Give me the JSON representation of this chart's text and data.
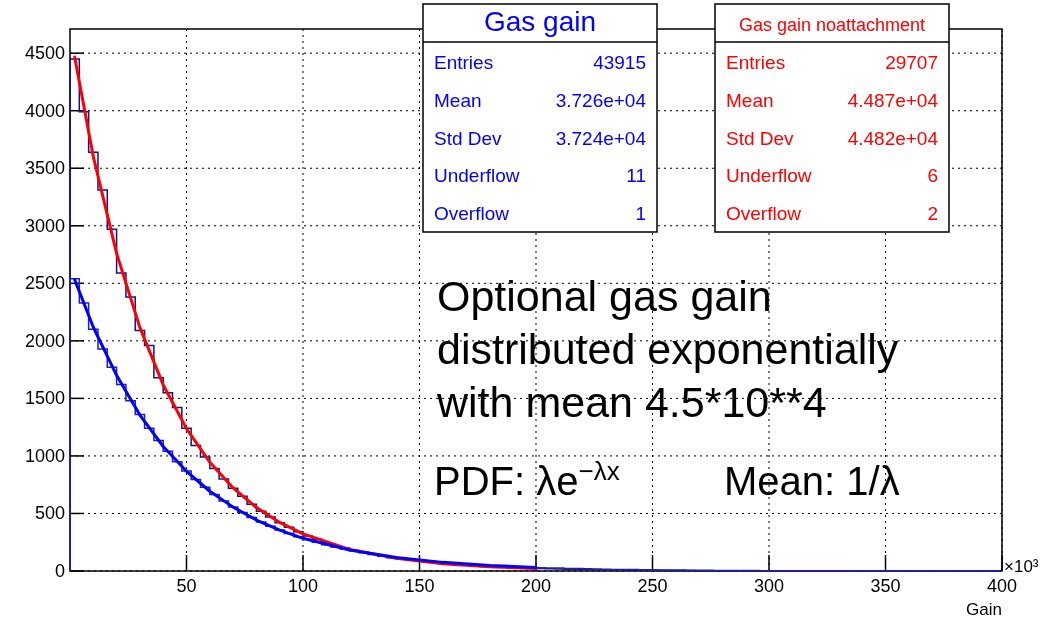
{
  "chart_data": {
    "type": "histogram",
    "xlabel": "Gain",
    "bins": [
      0,
      4,
      8,
      12,
      16,
      20,
      24,
      28,
      32,
      36,
      40,
      44,
      48,
      52,
      56,
      60,
      64,
      68,
      72,
      76,
      80,
      84,
      88,
      92,
      96,
      100,
      104,
      108,
      112,
      116,
      120,
      124,
      128,
      132,
      136,
      140,
      144,
      148,
      152,
      156,
      160,
      164,
      168,
      172,
      176,
      180,
      184,
      188,
      192,
      196,
      200,
      204,
      208,
      212,
      216,
      220,
      224,
      228,
      232,
      236,
      240,
      244,
      248,
      252,
      256,
      260,
      264,
      268,
      272,
      276,
      280,
      284,
      288,
      292,
      296,
      300,
      304,
      308,
      312,
      316,
      320,
      324,
      328,
      332,
      336,
      340,
      344,
      348,
      352,
      356,
      360,
      364,
      368,
      372,
      376,
      380,
      384,
      388,
      392,
      396,
      400
    ],
    "series": [
      {
        "type": "histogram",
        "color": "#10109a",
        "values": [
          4450,
          3990,
          3640,
          3310,
          2970,
          2590,
          2380,
          2090,
          1960,
          1680,
          1550,
          1420,
          1240,
          1090,
          990,
          890,
          800,
          720,
          650,
          580,
          520,
          470,
          420,
          380,
          340,
          305,
          275,
          245,
          220,
          200,
          178,
          160,
          144,
          129,
          116,
          104,
          93,
          84,
          75,
          68,
          61,
          55,
          49,
          44,
          40,
          36,
          32,
          29,
          26,
          23,
          21,
          19,
          17,
          15,
          13,
          12,
          11,
          10,
          9,
          8,
          7,
          6,
          6,
          5,
          5,
          4,
          4,
          3,
          3,
          3,
          2,
          2,
          2,
          2,
          2,
          1,
          1,
          1,
          1,
          1,
          0,
          0,
          0,
          0,
          0,
          0,
          0,
          0,
          0,
          0,
          0,
          0,
          0,
          0,
          0,
          0,
          0,
          0,
          0,
          0
        ]
      },
      {
        "type": "histogram",
        "color": "#2020b0",
        "values": [
          2540,
          2330,
          2100,
          1930,
          1770,
          1620,
          1480,
          1360,
          1240,
          1135,
          1040,
          950,
          870,
          795,
          727,
          665,
          608,
          556,
          509,
          465,
          426,
          389,
          356,
          326,
          298,
          273,
          249,
          228,
          209,
          191,
          175,
          160,
          146,
          134,
          122,
          112,
          102,
          94,
          86,
          78,
          72,
          66,
          60,
          55,
          50,
          46,
          42,
          38,
          35,
          32,
          29,
          27,
          25,
          22,
          21,
          19,
          17,
          16,
          14,
          13,
          12,
          11,
          10,
          9,
          8,
          8,
          7,
          6,
          6,
          5,
          5,
          4,
          4,
          4,
          3,
          3,
          3,
          3,
          2,
          2,
          2,
          2,
          2,
          1,
          1,
          1,
          1,
          1,
          1,
          1,
          1,
          1,
          0,
          0,
          0,
          0,
          0,
          0,
          0,
          0
        ]
      },
      {
        "type": "line",
        "color": "#ff0000",
        "x": [
          2,
          10,
          20,
          30,
          40,
          50,
          60,
          70,
          80,
          90,
          100,
          120,
          140,
          160,
          180,
          200
        ],
        "values": [
          4467,
          3601,
          2761,
          2115,
          1617,
          1238,
          945,
          722,
          552,
          422,
          322,
          188,
          110,
          64,
          37,
          22
        ]
      },
      {
        "type": "line",
        "color": "#0000ff",
        "x": [
          2,
          10,
          20,
          30,
          40,
          50,
          60,
          70,
          80,
          90,
          100,
          120,
          140,
          160,
          180,
          200
        ],
        "values": [
          2532,
          2118,
          1700,
          1355,
          1082,
          866,
          693,
          555,
          443,
          355,
          284,
          182,
          117,
          75,
          48,
          31
        ]
      }
    ],
    "xlim": [
      0,
      400
    ],
    "xticks": [
      50,
      100,
      150,
      200,
      250,
      300,
      350,
      400
    ],
    "ylim": [
      0,
      4710
    ],
    "yticks": [
      0,
      500,
      1000,
      1500,
      2000,
      2500,
      3000,
      3500,
      4000,
      4500
    ],
    "grid": true,
    "line_style": "solid",
    "marker": "none",
    "annotations": [
      "Gas gain",
      "Entries",
      "43915",
      "Mean",
      "3.726e+04",
      "Std Dev",
      "3.724e+04",
      "Underflow",
      "11",
      "Overflow",
      "1",
      "Gas gain noattachment",
      "Entries",
      "29707",
      "Mean",
      "4.487e+04",
      "Std Dev",
      "4.482e+04",
      "Underflow",
      "6",
      "Overflow",
      "2",
      "Optional gas gain",
      "distributed exponentially",
      "with mean 4.5*10**4",
      "PDF: λe$^{−λx}$",
      "Mean: 1/λ",
      "×10³"
    ]
  }
}
